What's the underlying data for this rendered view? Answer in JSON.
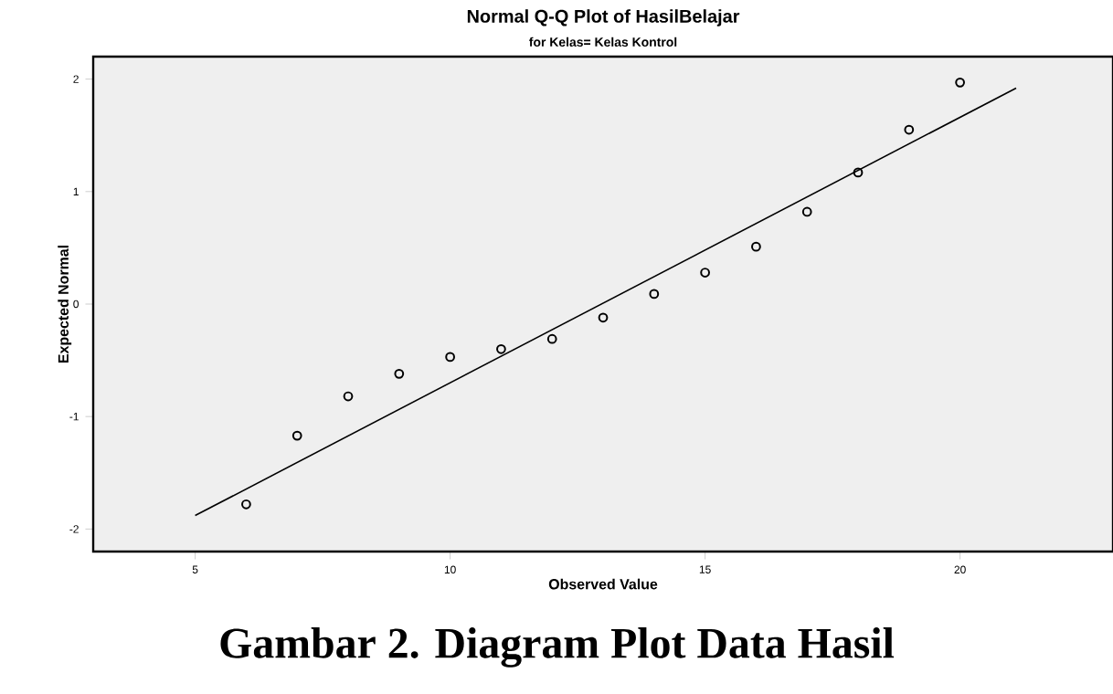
{
  "chart_data": {
    "type": "scatter",
    "title": "Normal Q-Q Plot of HasilBelajar",
    "subtitle": "for Kelas= Kelas Kontrol",
    "xlabel": "Observed Value",
    "ylabel": "Expected Normal",
    "annotations": [
      "Gambar 2.  Diagram Plot Data Hasil"
    ],
    "xlim": [
      3,
      23
    ],
    "ylim": [
      -2.2,
      2.2
    ],
    "xticks": [
      5,
      10,
      15,
      20
    ],
    "yticks": [
      -2,
      -1,
      0,
      1,
      2
    ],
    "grid": false,
    "series": [
      {
        "marker": "circle",
        "color": "#000000",
        "x": [
          6,
          7,
          8,
          9,
          10,
          11,
          12,
          13,
          14,
          15,
          16,
          17,
          18,
          19,
          20
        ],
        "values": [
          -1.78,
          -1.17,
          -0.82,
          -0.62,
          -0.47,
          -0.4,
          -0.31,
          -0.12,
          0.09,
          0.28,
          0.51,
          0.82,
          1.17,
          1.55,
          1.97
        ]
      },
      {
        "type": "line",
        "marker": "none",
        "color": "#000000",
        "x": [
          5.0,
          21.1
        ],
        "values": [
          -1.88,
          1.92
        ]
      }
    ]
  }
}
